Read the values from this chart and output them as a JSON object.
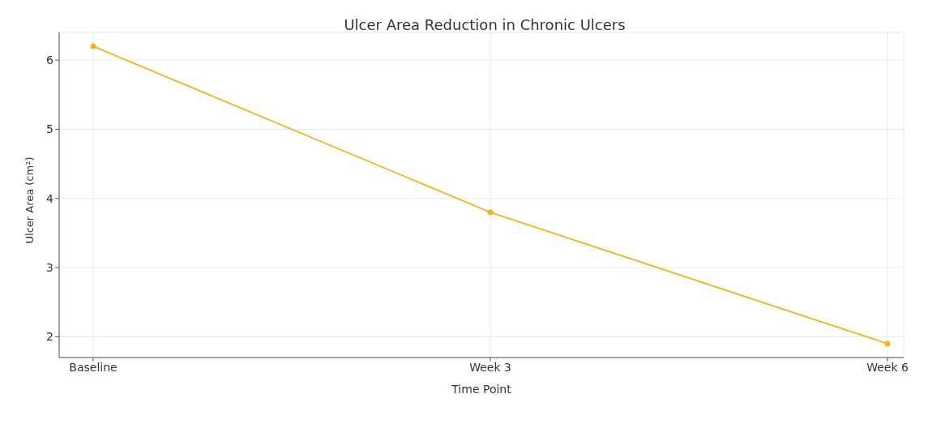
{
  "chart_data": {
    "type": "line",
    "title": "Ulcer Area Reduction in Chronic Ulcers",
    "xlabel": "Time Point",
    "ylabel": "Ulcer Area (cm²)",
    "categories": [
      "Baseline",
      "Week 3",
      "Week 6"
    ],
    "series": [
      {
        "color": "#f0b41e",
        "values": [
          6.2,
          3.8,
          1.9
        ]
      }
    ],
    "ylim": [
      1.7,
      6.4
    ],
    "yticks": [
      2,
      3,
      4,
      5,
      6
    ],
    "grid": true,
    "marker": "circle",
    "line_style": "solid"
  }
}
